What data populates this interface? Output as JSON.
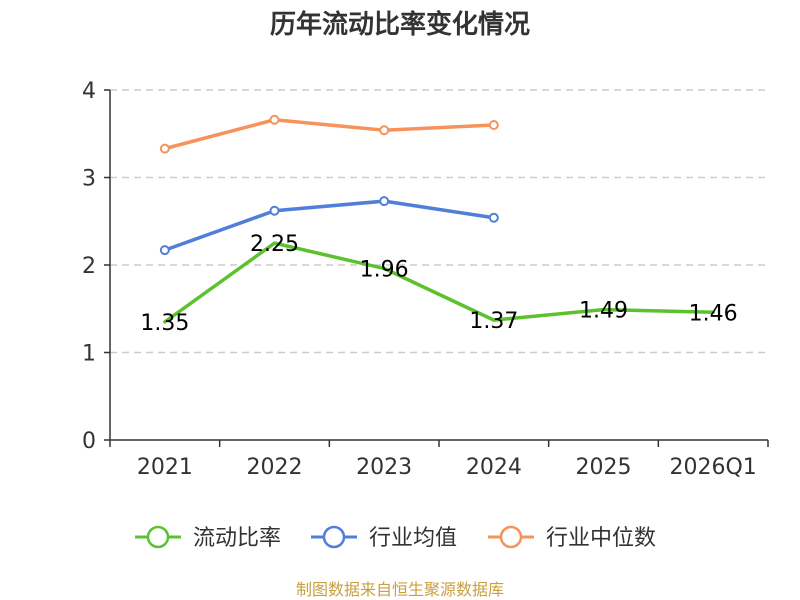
{
  "chart_data": {
    "type": "line",
    "title": "历年流动比率变化情况",
    "categories": [
      "2021",
      "2022",
      "2023",
      "2024",
      "2025",
      "2026Q1"
    ],
    "ylim": [
      0,
      4
    ],
    "yticks": [
      "0",
      "1",
      "2",
      "3",
      "4"
    ],
    "grid": true,
    "legend_position": "bottom",
    "series": [
      {
        "name": "流动比率",
        "color": "#5cc12e",
        "values": [
          1.35,
          2.25,
          1.96,
          1.37,
          1.49,
          1.46
        ],
        "labels": [
          "1.35",
          "2.25",
          "1.96",
          "1.37",
          "1.49",
          "1.46"
        ],
        "show_markers": false,
        "show_labels": true
      },
      {
        "name": "行业均值",
        "color": "#4f7fd8",
        "values": [
          2.17,
          2.62,
          2.73,
          2.54,
          null,
          null
        ],
        "show_markers": true,
        "show_labels": false
      },
      {
        "name": "行业中位数",
        "color": "#f5935a",
        "values": [
          3.33,
          3.66,
          3.54,
          3.6,
          null,
          null
        ],
        "show_markers": true,
        "show_labels": false
      }
    ],
    "source": "制图数据来自恒生聚源数据库"
  }
}
